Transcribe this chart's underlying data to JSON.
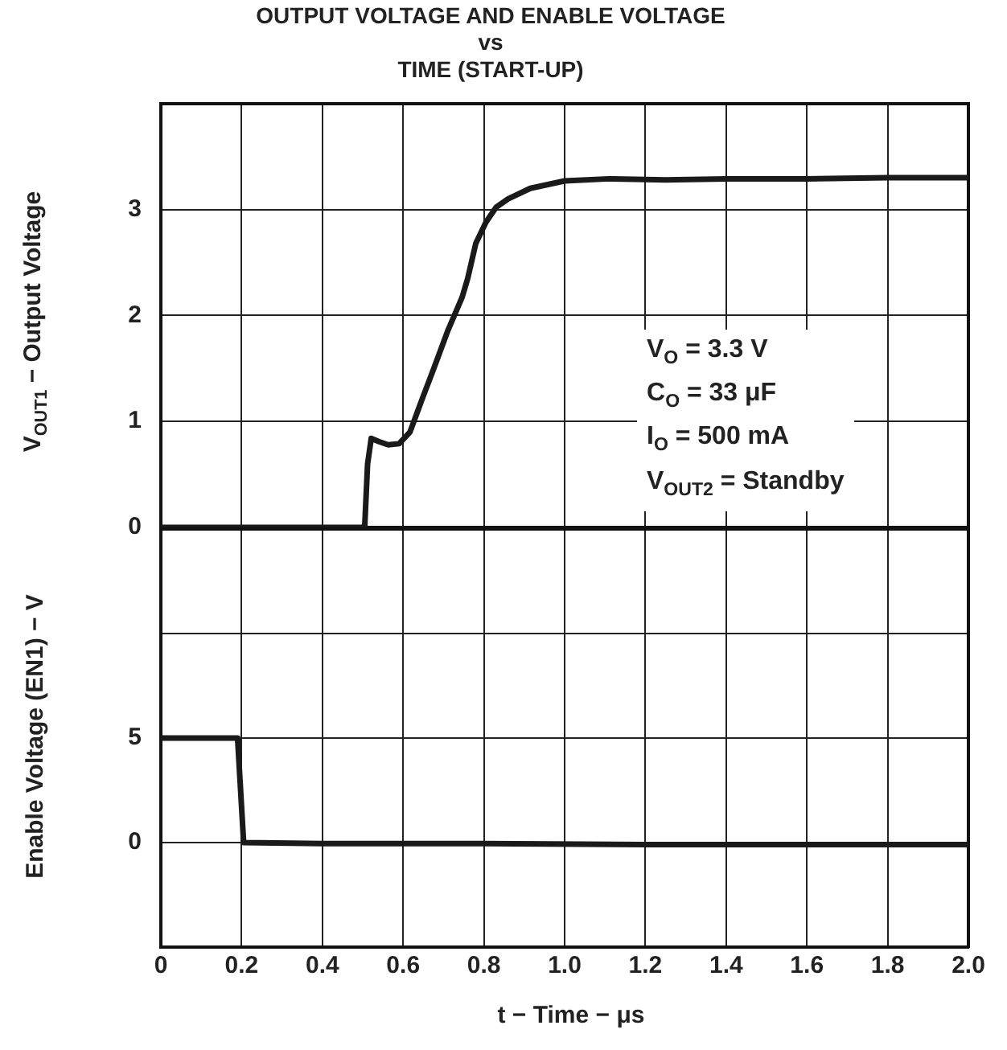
{
  "chart_data": [
    {
      "type": "line",
      "title": "OUTPUT VOLTAGE AND ENABLE VOLTAGE\nvs\nTIME (START-UP)",
      "ylabel": "V$_{OUT1}$ − Output Voltage",
      "annotations": [
        "V$_{O}$ = 3.3 V",
        "C$_{O}$ = 33 μF",
        "I$_{O}$ = 500 mA",
        "V$_{OUT2}$ = Standby"
      ],
      "xlim": [
        0,
        2.0
      ],
      "xticks": [
        0,
        0.2,
        0.4,
        0.6,
        0.8,
        1,
        1.2,
        1.4,
        1.6,
        1.8,
        2
      ],
      "ylim": [
        0,
        4
      ],
      "yticks": [
        0,
        1,
        2,
        3
      ],
      "tick_labels": "y",
      "grid": true,
      "legend": false,
      "series": [
        {
          "color": "#1a1a1a",
          "x": [
            0,
            0.2,
            0.4,
            0.5,
            0.505,
            0.512,
            0.521,
            0.54,
            0.563,
            0.59,
            0.617,
            0.646,
            0.676,
            0.71,
            0.746,
            0.76,
            0.78,
            0.805,
            0.83,
            0.86,
            0.915,
            1.0,
            1.11,
            1.25,
            1.4,
            1.6,
            1.8,
            2.0
          ],
          "values": [
            0,
            0,
            0,
            0,
            0.02,
            0.6,
            0.84,
            0.81,
            0.78,
            0.79,
            0.9,
            1.2,
            1.5,
            1.85,
            2.17,
            2.35,
            2.68,
            2.88,
            3.02,
            3.1,
            3.2,
            3.27,
            3.29,
            3.28,
            3.29,
            3.29,
            3.3,
            3.3
          ]
        }
      ]
    },
    {
      "type": "line",
      "xlabel": "t − Time − μs",
      "ylabel": "Enable Voltage (EN1) − V",
      "xlim": [
        0,
        2.0
      ],
      "xticks": [
        0,
        0.2,
        0.4,
        0.6,
        0.8,
        {
          "value": 1,
          "label": "1.0"
        },
        1.2,
        1.4,
        1.6,
        1.8,
        {
          "value": 2,
          "label": "2.0"
        }
      ],
      "ylim": [
        -5,
        15
      ],
      "yticks": [
        0,
        5,
        {
          "value": 10,
          "label": null
        }
      ],
      "grid": true,
      "legend": false,
      "series": [
        {
          "color": "#1a1a1a",
          "x": [
            0,
            0.1,
            0.19,
            0.205,
            0.4,
            0.8,
            1.2,
            1.6,
            2.0
          ],
          "values": [
            5,
            5,
            5,
            0,
            -0.05,
            -0.05,
            -0.1,
            -0.1,
            -0.1
          ]
        }
      ]
    }
  ]
}
